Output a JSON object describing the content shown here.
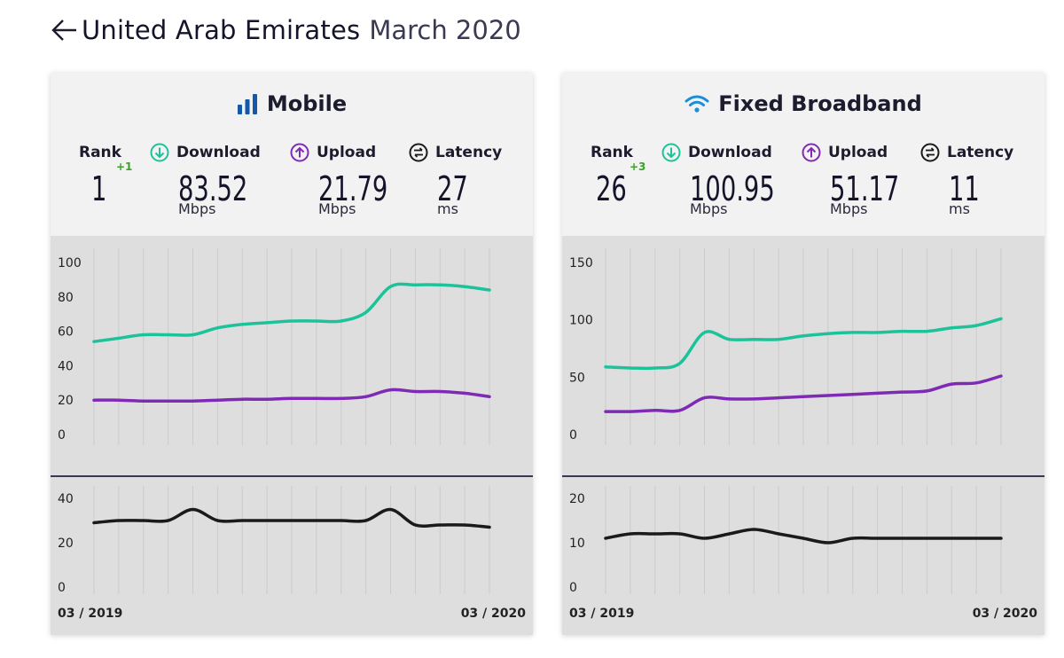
{
  "header": {
    "country": "United Arab Emirates",
    "date": "March 2020",
    "back_icon": "arrow-left-icon"
  },
  "colors": {
    "download": "#1cc39a",
    "upload": "#7e2ab5",
    "latency": "#1a1a1a",
    "rank_change": "#3aa22c",
    "title_icon": "#1458a8"
  },
  "panels": [
    {
      "id": "mobile",
      "title": "Mobile",
      "icon": "signal-bars-icon",
      "rank_label": "Rank",
      "rank": "1",
      "rank_change": "+1",
      "download_label": "Download",
      "download": "83.52",
      "download_unit": "Mbps",
      "upload_label": "Upload",
      "upload": "21.79",
      "upload_unit": "Mbps",
      "latency_label": "Latency",
      "latency": "27",
      "latency_unit": "ms"
    },
    {
      "id": "fixed",
      "title": "Fixed Broadband",
      "icon": "wifi-icon",
      "rank_label": "Rank",
      "rank": "26",
      "rank_change": "+3",
      "download_label": "Download",
      "download": "100.95",
      "download_unit": "Mbps",
      "upload_label": "Upload",
      "upload": "51.17",
      "upload_unit": "Mbps",
      "latency_label": "Latency",
      "latency": "11",
      "latency_unit": "ms"
    }
  ],
  "chart_data": [
    {
      "type": "line",
      "panel": "mobile",
      "x_start_label": "03 / 2019",
      "x_end_label": "03 / 2020",
      "speed": {
        "ylim": [
          0,
          100
        ],
        "yticks": [
          0,
          20,
          40,
          60,
          80,
          100
        ],
        "series": [
          {
            "key": "download",
            "values": [
              54,
              56,
              58,
              58,
              58,
              62,
              64,
              65,
              66,
              66,
              66,
              71,
              86,
              87,
              87,
              86,
              84
            ]
          },
          {
            "key": "upload",
            "values": [
              20,
              20,
              19.5,
              19.5,
              19.5,
              20,
              20.5,
              20.5,
              21,
              21,
              21,
              22,
              26,
              25,
              25,
              24,
              22
            ]
          }
        ]
      },
      "latency": {
        "ylim": [
          0,
          40
        ],
        "yticks": [
          0,
          20,
          40
        ],
        "series": [
          {
            "key": "latency",
            "values": [
              29,
              30,
              30,
              30,
              35,
              30,
              30,
              30,
              30,
              30,
              30,
              30,
              35,
              28,
              28,
              28,
              27
            ]
          }
        ]
      }
    },
    {
      "type": "line",
      "panel": "fixed",
      "x_start_label": "03 / 2019",
      "x_end_label": "03 / 2020",
      "speed": {
        "ylim": [
          0,
          150
        ],
        "yticks": [
          0,
          50,
          100,
          150
        ],
        "series": [
          {
            "key": "download",
            "values": [
              59,
              58,
              58,
              62,
              89,
              83,
              83,
              83,
              86,
              88,
              89,
              89,
              90,
              90,
              93,
              95,
              101
            ]
          },
          {
            "key": "upload",
            "values": [
              20,
              20,
              21,
              21,
              32,
              31,
              31,
              32,
              33,
              34,
              35,
              36,
              37,
              38,
              44,
              45,
              51
            ]
          }
        ]
      },
      "latency": {
        "ylim": [
          0,
          20
        ],
        "yticks": [
          0,
          10,
          20
        ],
        "series": [
          {
            "key": "latency",
            "values": [
              11,
              12,
              12,
              12,
              11,
              12,
              13,
              12,
              11,
              10,
              11,
              11,
              11,
              11,
              11,
              11,
              11
            ]
          }
        ]
      }
    }
  ]
}
